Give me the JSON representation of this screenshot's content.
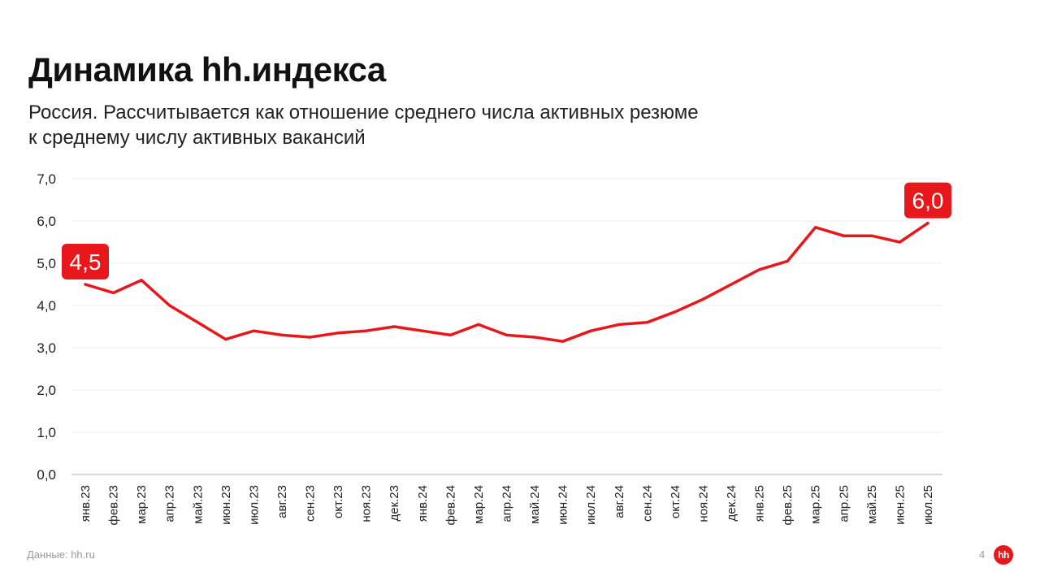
{
  "header": {
    "title": "Динамика hh.индекса",
    "subtitle_line1": "Россия. Рассчитывается как отношение среднего числа активных резюме",
    "subtitle_line2": "к среднему числу активных вакансий"
  },
  "footer": {
    "source": "Данные: hh.ru",
    "page_number": "4",
    "logo_text": "hh"
  },
  "colors": {
    "line": "#e8171b",
    "grid": "#eeeeee",
    "axis": "#cccccc",
    "label_bg": "#e8171b"
  },
  "chart_data": {
    "type": "line",
    "title": "Динамика hh.индекса",
    "xlabel": "",
    "ylabel": "",
    "ylim": [
      0,
      7
    ],
    "yticks": [
      "0,0",
      "1,0",
      "2,0",
      "3,0",
      "4,0",
      "5,0",
      "6,0",
      "7,0"
    ],
    "grid": true,
    "categories": [
      "янв.23",
      "фев.23",
      "мар.23",
      "апр.23",
      "май.23",
      "июн.23",
      "июл.23",
      "авг.23",
      "сен.23",
      "окт.23",
      "ноя.23",
      "дек.23",
      "янв.24",
      "фев.24",
      "мар.24",
      "апр.24",
      "май.24",
      "июн.24",
      "июл.24",
      "авг.24",
      "сен.24",
      "окт.24",
      "ноя.24",
      "дек.24",
      "янв.25",
      "фев.25",
      "мар.25",
      "апр.25",
      "май.25",
      "июн.25",
      "июл.25"
    ],
    "series": [
      {
        "values": [
          4.5,
          4.3,
          4.6,
          4.0,
          3.6,
          3.2,
          3.4,
          3.3,
          3.25,
          3.35,
          3.4,
          3.5,
          3.4,
          3.3,
          3.55,
          3.3,
          3.25,
          3.15,
          3.4,
          3.55,
          3.6,
          3.85,
          4.15,
          4.5,
          4.85,
          5.05,
          5.85,
          5.65,
          5.65,
          5.5,
          5.95
        ]
      }
    ],
    "annotations": [
      {
        "index": 0,
        "text": "4,5"
      },
      {
        "index": 30,
        "text": "6,0"
      }
    ]
  }
}
